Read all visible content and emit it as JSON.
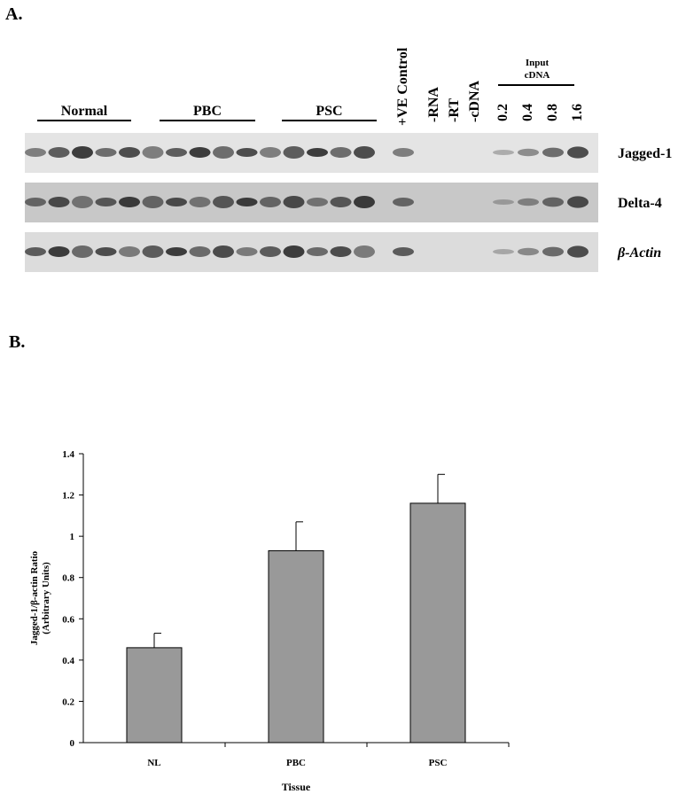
{
  "panel_a": {
    "label": "A.",
    "groups": [
      "Normal",
      "PBC",
      "PSC"
    ],
    "lanes": [
      "+VE Control",
      "-RNA",
      "-RT",
      "-cDNA"
    ],
    "input_title": [
      "Input",
      "cDNA"
    ],
    "input_amounts": [
      "0.2",
      "0.4",
      "0.8",
      "1.6"
    ],
    "rows": [
      "Jagged-1",
      "Delta-4",
      "β-Actin"
    ]
  },
  "panel_b": {
    "label": "B."
  },
  "chart_data": {
    "type": "bar",
    "categories": [
      "NL",
      "PBC",
      "PSC"
    ],
    "values": [
      0.46,
      0.93,
      1.16
    ],
    "errors": [
      0.07,
      0.14,
      0.14
    ],
    "color": "#999999",
    "x_label": "Tissue",
    "y_label": [
      "Jagged-1/β-actin Ratio",
      "(Arbitrary Units)"
    ],
    "ylim": [
      0,
      1.4
    ],
    "yticks": [
      0,
      0.2,
      0.4,
      0.6,
      0.8,
      1,
      1.2,
      1.4
    ]
  }
}
